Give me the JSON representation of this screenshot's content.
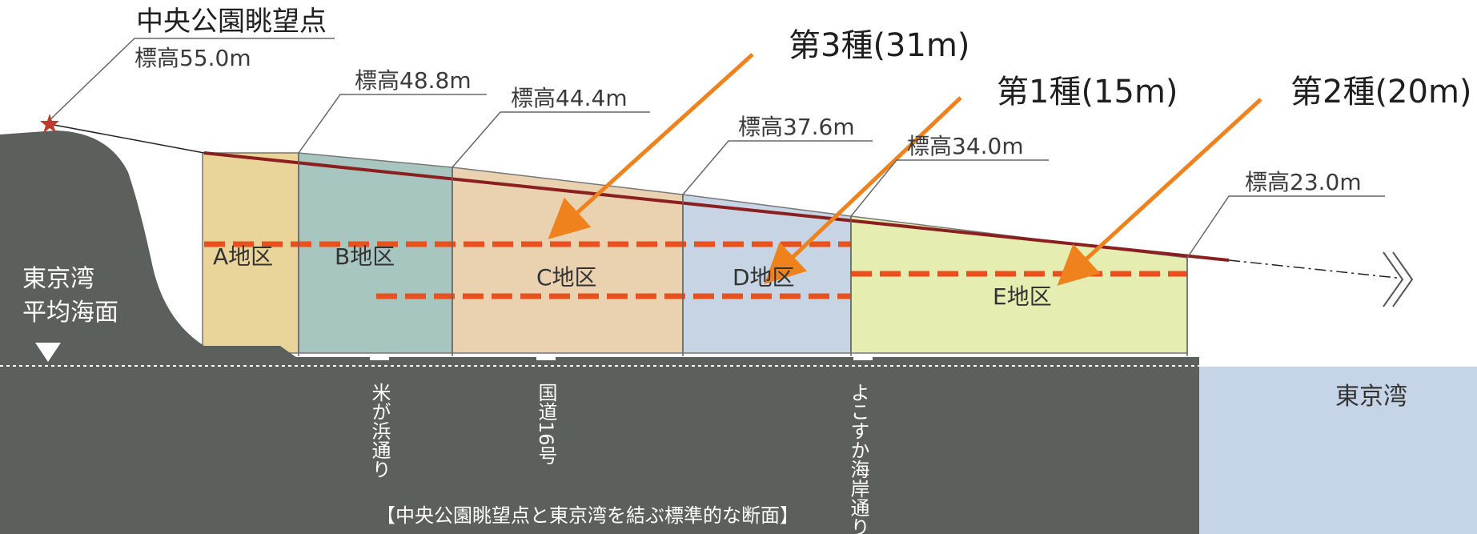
{
  "viewpoint": {
    "name": "中央公園眺望点",
    "elevation": "標高55.0m"
  },
  "sea_level": {
    "label_line1": "東京湾",
    "label_line2": "平均海面"
  },
  "districts": [
    {
      "label": "A地区",
      "color": "#e9d49a"
    },
    {
      "label": "B地区",
      "color": "#a7c6bf"
    },
    {
      "label": "C地区",
      "color": "#ead1b0"
    },
    {
      "label": "D地区",
      "color": "#c6d4e3"
    },
    {
      "label": "E地区",
      "color": "#e6edb0"
    }
  ],
  "elevations": [
    {
      "label": "標高48.8m"
    },
    {
      "label": "標高44.4m"
    },
    {
      "label": "標高37.6m"
    },
    {
      "label": "標高34.0m"
    },
    {
      "label": "標高23.0m"
    }
  ],
  "height_classes": [
    {
      "label": "第3種(31m)"
    },
    {
      "label": "第1種(15m)"
    },
    {
      "label": "第2種(20m)"
    }
  ],
  "roads": [
    {
      "label": "米が浜通り"
    },
    {
      "label": "国道16号"
    },
    {
      "label": "よこすか海岸通り"
    }
  ],
  "bay_label": "東京湾",
  "caption": "【中央公園眺望点と東京湾を結ぶ標準的な断面】",
  "colors": {
    "ground": "#5b605c",
    "bay": "#c5d4e6",
    "sightline": "#8b1e1e",
    "height_limit": "#e8501e",
    "arrow": "#f0821e"
  }
}
